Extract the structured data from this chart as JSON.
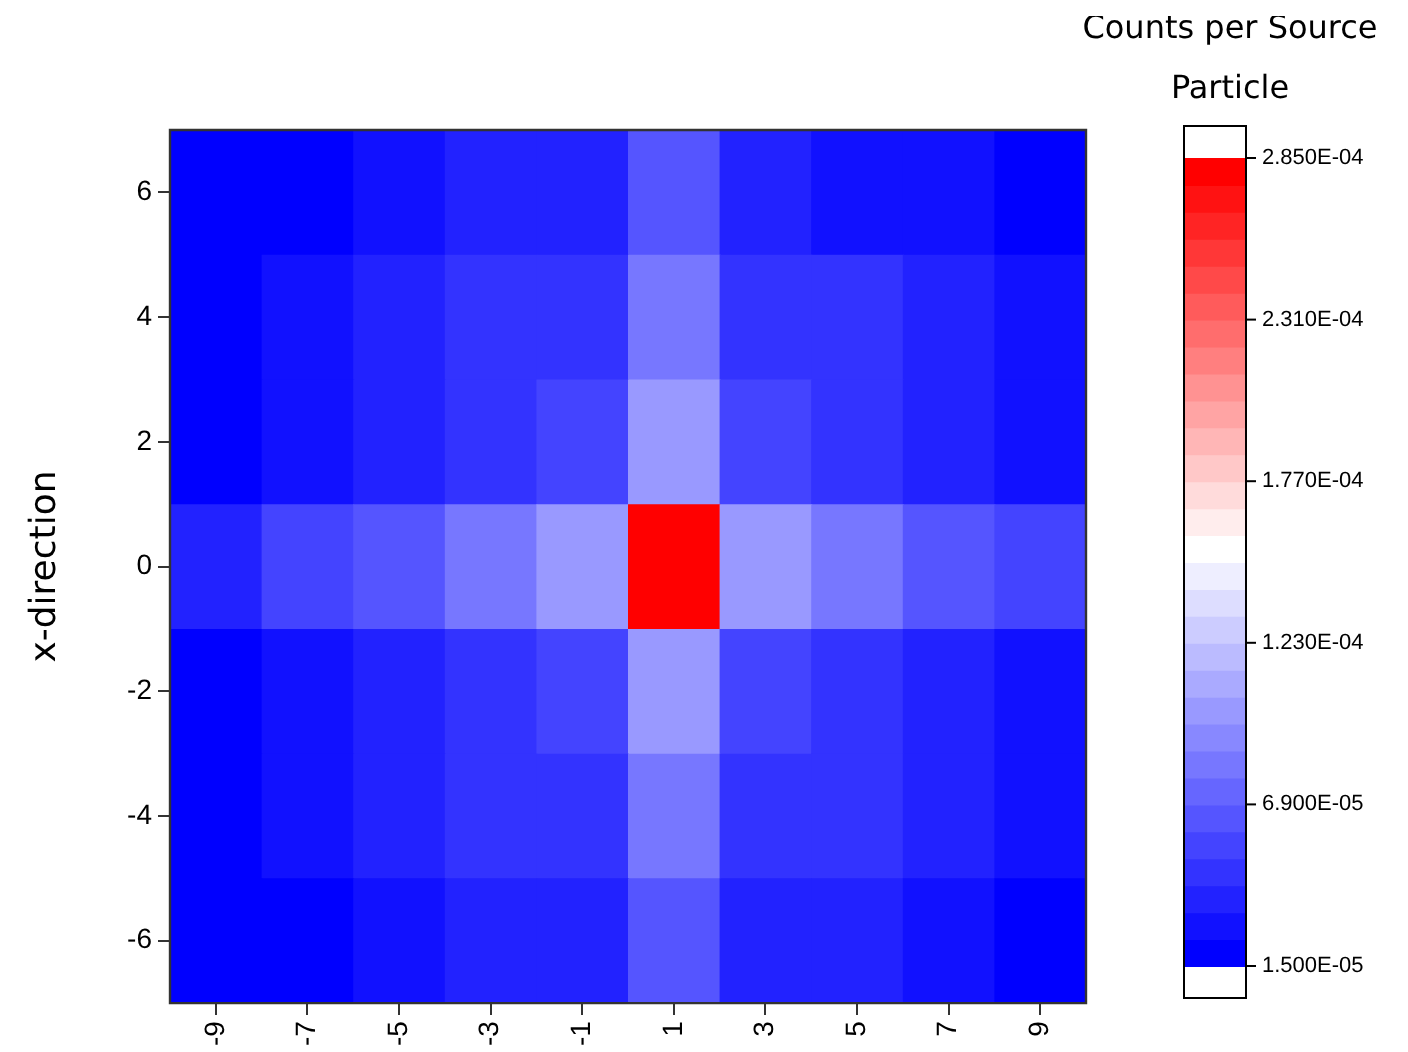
{
  "chart_data": {
    "type": "heatmap",
    "ylabel": "x-direction",
    "clabel": "Counts per Source Particle",
    "categories": [
      "-9",
      "-7",
      "-5",
      "-3",
      "-1",
      "1",
      "3",
      "5",
      "7",
      "9"
    ],
    "y_categories": [
      "6",
      "4",
      "2",
      "0",
      "-2",
      "-4",
      "-6"
    ],
    "cells": [
      [
        2e-05,
        2e-05,
        2.9e-05,
        3.8e-05,
        3.8e-05,
        6.5e-05,
        3.8e-05,
        2.9e-05,
        2.9e-05,
        2e-05
      ],
      [
        2e-05,
        2.9e-05,
        3.8e-05,
        4.7e-05,
        4.7e-05,
        8.3e-05,
        4.7e-05,
        4.7e-05,
        3.8e-05,
        2.9e-05
      ],
      [
        2e-05,
        2.9e-05,
        3.8e-05,
        4.7e-05,
        5.6e-05,
        0.000101,
        5.6e-05,
        4.7e-05,
        3.8e-05,
        2.9e-05
      ],
      [
        3.8e-05,
        5.6e-05,
        6.5e-05,
        8.3e-05,
        0.000101,
        0.00028,
        0.000101,
        8.3e-05,
        6.5e-05,
        5.6e-05
      ],
      [
        2e-05,
        2.9e-05,
        3.8e-05,
        4.7e-05,
        5.6e-05,
        0.000101,
        5.6e-05,
        4.7e-05,
        3.8e-05,
        2.9e-05
      ],
      [
        2e-05,
        2.9e-05,
        3.8e-05,
        4.7e-05,
        4.7e-05,
        8.3e-05,
        4.7e-05,
        4.7e-05,
        3.8e-05,
        2.9e-05
      ],
      [
        2e-05,
        2e-05,
        2.9e-05,
        3.8e-05,
        3.8e-05,
        6.5e-05,
        3.8e-05,
        3.8e-05,
        2.9e-05,
        2e-05
      ]
    ],
    "clim": [
      1.5e-05,
      0.000285
    ],
    "cticks": [
      {
        "value": 1.5e-05,
        "label": "1.500E-05"
      },
      {
        "value": 6.9e-05,
        "label": "6.900E-05"
      },
      {
        "value": 0.000123,
        "label": "1.230E-04"
      },
      {
        "value": 0.000177,
        "label": "1.770E-04"
      },
      {
        "value": 0.000231,
        "label": "2.310E-04"
      },
      {
        "value": 0.000285,
        "label": "2.850E-04"
      }
    ]
  }
}
